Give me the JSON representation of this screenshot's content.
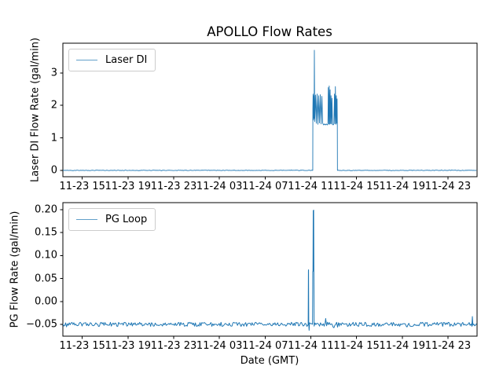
{
  "figure": {
    "title": "APOLLO Flow Rates",
    "xlabel": "Date (GMT)",
    "background_color": "#ffffff",
    "line_color": "#1f77b4",
    "spine_color": "#000000"
  },
  "xaxis": {
    "lim_hours_since_11_23_00": [
      13.3,
      49.55
    ],
    "tick_hours_since_11_23_00": [
      15,
      19,
      23,
      27,
      31,
      35,
      39,
      43,
      47
    ],
    "tick_labels": [
      "11-23 15",
      "11-23 19",
      "11-23 23",
      "11-24 03",
      "11-24 07",
      "11-24 11",
      "11-24 15",
      "11-24 19",
      "11-24 23"
    ]
  },
  "chart_data": [
    {
      "type": "line",
      "legend_label": "Laser DI",
      "legend_loc": "upper left",
      "ylabel": "Laser DI Flow Rate (gal/min)",
      "line_color": "#1f77b4",
      "ylim": [
        -0.195,
        3.915
      ],
      "yticks": [
        {
          "value": 3,
          "label": "3"
        },
        {
          "value": 2,
          "label": "2"
        },
        {
          "value": 1,
          "label": "1"
        },
        {
          "value": 0,
          "label": "0"
        }
      ],
      "baseline_value": 0.0,
      "peak_value": 3.7,
      "segments": [
        {
          "type": "noise",
          "t": [
            13.3,
            35.17
          ],
          "base": 0.0,
          "amp": 0.008
        },
        {
          "type": "path",
          "points": [
            [
              35.17,
              0
            ],
            [
              35.18,
              1.9
            ],
            [
              35.2,
              2.35
            ],
            [
              35.23,
              1.55
            ],
            [
              35.26,
              2.3
            ],
            [
              35.29,
              1.6
            ],
            [
              35.31,
              3.7
            ],
            [
              35.34,
              1.5
            ],
            [
              35.41,
              2.32
            ],
            [
              35.48,
              1.45
            ],
            [
              35.55,
              2.35
            ],
            [
              35.62,
              1.42
            ],
            [
              35.69,
              2.3
            ],
            [
              35.76,
              1.46
            ],
            [
              35.83,
              2.33
            ],
            [
              35.9,
              1.43
            ],
            [
              35.97,
              2.28
            ],
            [
              36.04,
              1.45
            ],
            [
              36.12,
              1.4
            ],
            [
              36.2,
              1.43
            ],
            [
              36.28,
              1.4
            ],
            [
              36.36,
              1.43
            ],
            [
              36.44,
              1.4
            ],
            [
              36.5,
              1.42
            ],
            [
              36.53,
              2.55
            ],
            [
              36.57,
              1.43
            ],
            [
              36.61,
              2.6
            ],
            [
              36.65,
              1.42
            ],
            [
              36.69,
              2.48
            ],
            [
              36.73,
              1.44
            ],
            [
              36.77,
              2.3
            ],
            [
              36.81,
              1.43
            ],
            [
              36.85,
              2.22
            ],
            [
              36.9,
              1.41
            ],
            [
              36.96,
              1.4
            ],
            [
              37.02,
              1.43
            ],
            [
              37.07,
              2.35
            ],
            [
              37.11,
              1.44
            ],
            [
              37.15,
              2.58
            ],
            [
              37.19,
              1.42
            ],
            [
              37.23,
              2.3
            ],
            [
              37.27,
              1.45
            ],
            [
              37.3,
              2.2
            ],
            [
              37.32,
              1.4
            ],
            [
              37.33,
              0
            ]
          ]
        },
        {
          "type": "noise",
          "t": [
            37.33,
            49.55
          ],
          "base": 0.0,
          "amp": 0.008
        }
      ]
    },
    {
      "type": "line",
      "legend_label": "PG Loop",
      "legend_loc": "upper left",
      "ylabel": "PG Flow Rate (gal/min)",
      "line_color": "#1f77b4",
      "ylim": [
        -0.0757,
        0.2153
      ],
      "yticks": [
        {
          "value": 0.2,
          "label": "0.20"
        },
        {
          "value": 0.15,
          "label": "0.15"
        },
        {
          "value": 0.1,
          "label": "0.10"
        },
        {
          "value": 0.05,
          "label": "0.05"
        },
        {
          "value": 0.0,
          "label": "0.00"
        },
        {
          "value": -0.05,
          "label": "−0.05"
        }
      ],
      "baseline_value": -0.05,
      "peak_value": 0.199,
      "segments": [
        {
          "type": "noise",
          "t": [
            13.3,
            34.77
          ],
          "base": -0.05,
          "amp": 0.0045
        },
        {
          "type": "path",
          "points": [
            [
              34.77,
              -0.049
            ],
            [
              34.79,
              0.067
            ],
            [
              34.8,
              0.069
            ],
            [
              34.82,
              -0.05
            ],
            [
              34.85,
              -0.063
            ],
            [
              34.88,
              -0.05
            ]
          ]
        },
        {
          "type": "noise",
          "t": [
            34.88,
            35.15
          ],
          "base": -0.05,
          "amp": 0.0045
        },
        {
          "type": "path",
          "points": [
            [
              35.15,
              -0.05
            ],
            [
              35.17,
              0.064
            ],
            [
              35.19,
              0.067
            ],
            [
              35.21,
              0.198
            ],
            [
              35.23,
              0.066
            ],
            [
              35.25,
              0.199
            ],
            [
              35.27,
              0.064
            ],
            [
              35.29,
              -0.05
            ]
          ]
        },
        {
          "type": "noise",
          "t": [
            35.29,
            36.3
          ],
          "base": -0.05,
          "amp": 0.005
        },
        {
          "type": "noise",
          "t": [
            36.3,
            37.5
          ],
          "base": -0.05,
          "amp": 0.0075
        },
        {
          "type": "noise",
          "t": [
            37.5,
            49.1
          ],
          "base": -0.05,
          "amp": 0.0045
        },
        {
          "type": "path",
          "points": [
            [
              49.1,
              -0.05
            ],
            [
              49.14,
              -0.033
            ],
            [
              49.18,
              -0.05
            ]
          ]
        },
        {
          "type": "noise",
          "t": [
            49.18,
            49.55
          ],
          "base": -0.05,
          "amp": 0.0045
        }
      ]
    }
  ]
}
